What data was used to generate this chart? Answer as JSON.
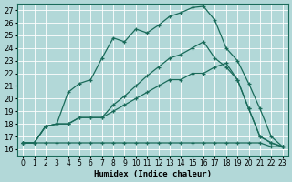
{
  "xlabel": "Humidex (Indice chaleur)",
  "xlim": [
    -0.5,
    23.5
  ],
  "ylim": [
    15.5,
    27.5
  ],
  "xticks": [
    0,
    1,
    2,
    3,
    4,
    5,
    6,
    7,
    8,
    9,
    10,
    11,
    12,
    13,
    14,
    15,
    16,
    17,
    18,
    19,
    20,
    21,
    22,
    23
  ],
  "yticks": [
    16,
    17,
    18,
    19,
    20,
    21,
    22,
    23,
    24,
    25,
    26,
    27
  ],
  "bg_color": "#b2d8d8",
  "grid_color": "#ffffff",
  "line_color": "#1a6b5a",
  "lines": [
    {
      "x": [
        0,
        1,
        2,
        3,
        4,
        5,
        6,
        7,
        8,
        9,
        10,
        11,
        12,
        13,
        14,
        15,
        16,
        17,
        18,
        19,
        20,
        21,
        22,
        23
      ],
      "y": [
        16.5,
        16.5,
        16.5,
        16.5,
        16.5,
        16.5,
        16.5,
        16.5,
        16.5,
        16.5,
        16.5,
        16.5,
        16.5,
        16.5,
        16.5,
        16.5,
        16.5,
        16.5,
        16.5,
        16.5,
        16.5,
        16.5,
        16.2,
        16.2
      ]
    },
    {
      "x": [
        0,
        1,
        2,
        3,
        4,
        5,
        6,
        7,
        8,
        9,
        10,
        11,
        12,
        13,
        14,
        15,
        16,
        17,
        18,
        19,
        20,
        21,
        22,
        23
      ],
      "y": [
        16.5,
        16.5,
        17.8,
        18.0,
        18.0,
        18.5,
        18.5,
        18.5,
        19.0,
        19.5,
        20.0,
        20.5,
        21.0,
        21.5,
        21.5,
        22.0,
        22.0,
        22.5,
        22.8,
        21.5,
        19.2,
        17.0,
        16.5,
        16.2
      ]
    },
    {
      "x": [
        0,
        1,
        2,
        3,
        4,
        5,
        6,
        7,
        8,
        9,
        10,
        11,
        12,
        13,
        14,
        15,
        16,
        17,
        18,
        19,
        20,
        21,
        22,
        23
      ],
      "y": [
        16.5,
        16.5,
        17.8,
        18.0,
        18.0,
        18.5,
        18.5,
        18.5,
        19.5,
        20.2,
        21.0,
        21.8,
        22.5,
        23.2,
        23.5,
        24.0,
        24.5,
        23.2,
        22.5,
        21.5,
        19.2,
        17.0,
        16.5,
        16.2
      ]
    },
    {
      "x": [
        0,
        1,
        2,
        3,
        4,
        5,
        6,
        7,
        8,
        9,
        10,
        11,
        12,
        13,
        14,
        15,
        16,
        17,
        18,
        19,
        20,
        21,
        22,
        23
      ],
      "y": [
        16.5,
        16.5,
        17.8,
        18.0,
        20.5,
        21.2,
        21.5,
        23.2,
        24.8,
        24.5,
        25.5,
        25.2,
        25.8,
        26.5,
        26.8,
        27.2,
        27.3,
        26.2,
        24.0,
        23.0,
        21.2,
        19.2,
        17.0,
        16.2
      ]
    }
  ]
}
